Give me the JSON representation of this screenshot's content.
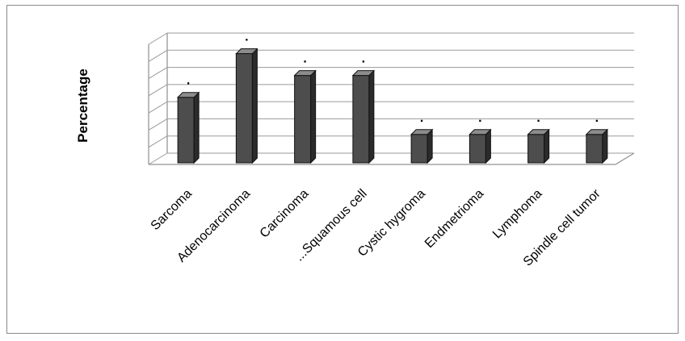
{
  "chart_data": {
    "type": "bar",
    "title": "",
    "xlabel": "",
    "ylabel": "Percentage",
    "categories": [
      "Sarcoma",
      "Adenocarcinoma",
      "Carcinoma",
      "...Squamous cell",
      "Cystic hygroma",
      "Endmetrioma",
      "Lymphoma",
      "Spindle cell tumor"
    ],
    "values": [
      3,
      5,
      4,
      4,
      1.3,
      1.3,
      1.3,
      1.3
    ],
    "data_labels": [
      ".",
      ".",
      ".",
      ".",
      ".",
      ".",
      ".",
      "."
    ],
    "ylim": [
      0,
      5.5
    ],
    "grid": true,
    "legend": "none",
    "bar_color": "#4d4d4d",
    "bar_side_color": "#2b2b2b",
    "bar_top_color": "#8c8c8c"
  }
}
